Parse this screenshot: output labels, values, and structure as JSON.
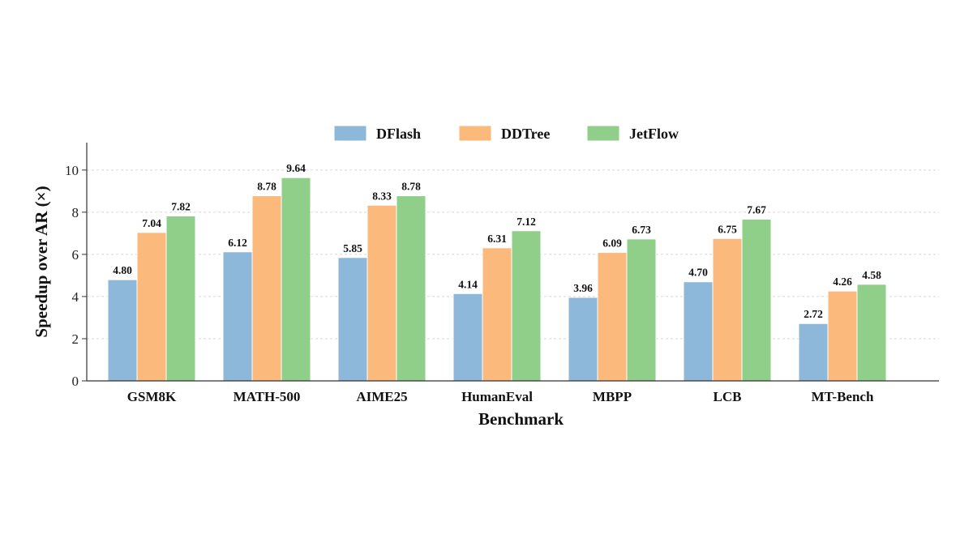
{
  "chart_data": {
    "type": "bar",
    "xlabel": "Benchmark",
    "ylabel": "Speedup over AR (×)",
    "ylim": [
      0,
      11.3
    ],
    "yticks": [
      "0",
      "2",
      "4",
      "6",
      "8",
      "10"
    ],
    "grid": "horizontal-dashed",
    "legend_position": "top-center",
    "categories": [
      "GSM8K",
      "MATH-500",
      "AIME25",
      "HumanEval",
      "MBPP",
      "LCB",
      "MT-Bench"
    ],
    "series": [
      {
        "name": "DFlash",
        "color": "#8db8d9",
        "values": [
          4.8,
          6.12,
          5.85,
          4.14,
          3.96,
          4.7,
          2.72
        ],
        "labels": [
          "4.80",
          "6.12",
          "5.85",
          "4.14",
          "3.96",
          "4.70",
          "2.72"
        ]
      },
      {
        "name": "DDTree",
        "color": "#fbb97c",
        "values": [
          7.04,
          8.78,
          8.33,
          6.31,
          6.09,
          6.75,
          4.26
        ],
        "labels": [
          "7.04",
          "8.78",
          "8.33",
          "6.31",
          "6.09",
          "6.75",
          "4.26"
        ]
      },
      {
        "name": "JetFlow",
        "color": "#8fcf8a",
        "values": [
          7.82,
          9.64,
          8.78,
          7.12,
          6.73,
          7.67,
          4.58
        ],
        "labels": [
          "7.82",
          "9.64",
          "8.78",
          "7.12",
          "6.73",
          "7.67",
          "4.58"
        ]
      }
    ]
  }
}
